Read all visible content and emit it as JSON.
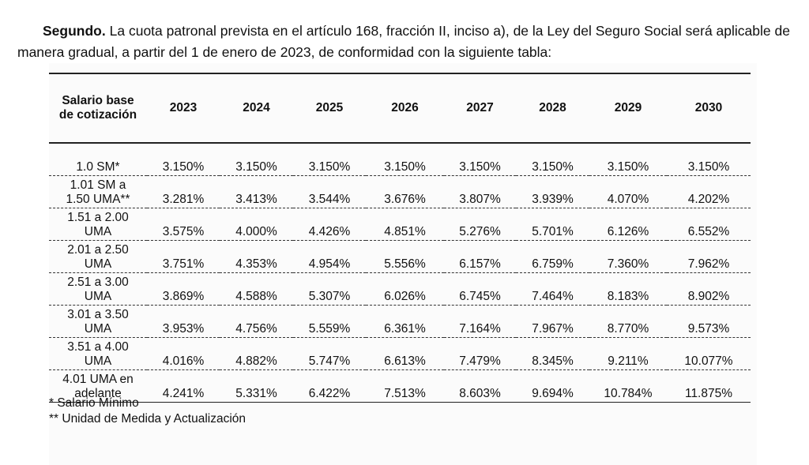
{
  "paragraph": {
    "lead": "Segundo.",
    "text": "La cuota patronal prevista en el artículo 168, fracción II, inciso a), de la Ley del Seguro Social será aplicable de manera gradual, a partir del 1 de enero de 2023, de conformidad con la siguiente tabla:"
  },
  "table": {
    "header": [
      "Salario base de cotización",
      "2023",
      "2024",
      "2025",
      "2026",
      "2027",
      "2028",
      "2029",
      "2030"
    ],
    "rows": [
      [
        "1.0 SM*",
        "3.150%",
        "3.150%",
        "3.150%",
        "3.150%",
        "3.150%",
        "3.150%",
        "3.150%",
        "3.150%"
      ],
      [
        "1.01 SM a 1.50 UMA**",
        "3.281%",
        "3.413%",
        "3.544%",
        "3.676%",
        "3.807%",
        "3.939%",
        "4.070%",
        "4.202%"
      ],
      [
        "1.51 a 2.00 UMA",
        "3.575%",
        "4.000%",
        "4.426%",
        "4.851%",
        "5.276%",
        "5.701%",
        "6.126%",
        "6.552%"
      ],
      [
        "2.01 a 2.50 UMA",
        "3.751%",
        "4.353%",
        "4.954%",
        "5.556%",
        "6.157%",
        "6.759%",
        "7.360%",
        "7.962%"
      ],
      [
        "2.51 a 3.00 UMA",
        "3.869%",
        "4.588%",
        "5.307%",
        "6.026%",
        "6.745%",
        "7.464%",
        "8.183%",
        "8.902%"
      ],
      [
        "3.01 a 3.50 UMA",
        "3.953%",
        "4.756%",
        "5.559%",
        "6.361%",
        "7.164%",
        "7.967%",
        "8.770%",
        "9.573%"
      ],
      [
        "3.51 a 4.00 UMA",
        "4.016%",
        "4.882%",
        "5.747%",
        "6.613%",
        "7.479%",
        "8.345%",
        "9.211%",
        "10.077%"
      ],
      [
        "4.01 UMA en adelante",
        "4.241%",
        "5.331%",
        "6.422%",
        "7.513%",
        "8.603%",
        "9.694%",
        "10.784%",
        "11.875%"
      ]
    ],
    "footnotes": [
      "* Salario Mínimo",
      "** Unidad de Medida y Actualización"
    ]
  }
}
